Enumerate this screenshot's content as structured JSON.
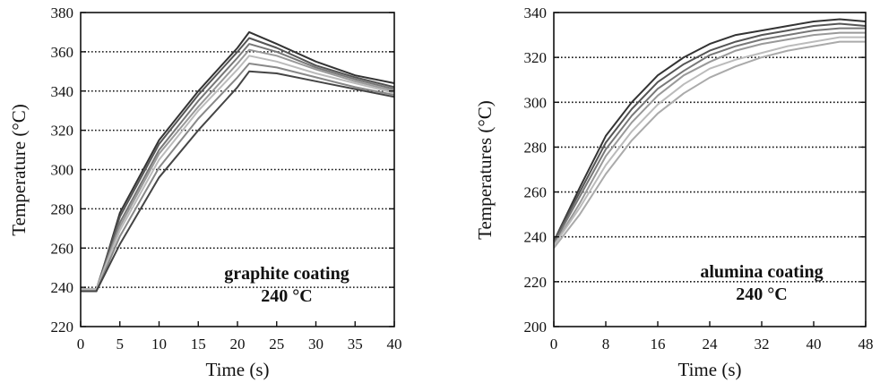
{
  "chart_data": [
    {
      "type": "line",
      "xlabel": "Time (s)",
      "ylabel": "Temperature (°C)",
      "xlim": [
        0,
        40
      ],
      "ylim": [
        220,
        380
      ],
      "xticks": [
        0,
        5,
        10,
        15,
        20,
        25,
        30,
        35,
        40
      ],
      "yticks": [
        220,
        240,
        260,
        280,
        300,
        320,
        340,
        360,
        380
      ],
      "grid": "horizontal dotted",
      "annotation": [
        "graphite coating",
        "240 °C"
      ],
      "series": [
        {
          "color": "#333333",
          "x": [
            0,
            2,
            5,
            10,
            15,
            20,
            21.5,
            25,
            30,
            35,
            40
          ],
          "y": [
            238,
            238,
            278,
            315,
            340,
            362,
            370,
            364,
            355,
            348,
            344
          ]
        },
        {
          "color": "#555555",
          "x": [
            0,
            2,
            5,
            10,
            15,
            20,
            21.5,
            25,
            30,
            35,
            40
          ],
          "y": [
            239,
            239,
            276,
            313,
            338,
            360,
            367,
            362,
            353,
            347,
            342
          ]
        },
        {
          "color": "#777777",
          "x": [
            0,
            2,
            5,
            10,
            15,
            20,
            21.5,
            25,
            30,
            35,
            40
          ],
          "y": [
            238,
            238,
            273,
            310,
            335,
            357,
            364,
            360,
            352,
            346,
            341
          ]
        },
        {
          "color": "#999999",
          "x": [
            0,
            2,
            5,
            10,
            15,
            20,
            21.5,
            25,
            30,
            35,
            40
          ],
          "y": [
            238,
            239,
            271,
            308,
            332,
            354,
            361,
            358,
            351,
            345,
            340
          ]
        },
        {
          "color": "#bbbbbb",
          "x": [
            0,
            2,
            5,
            10,
            15,
            20,
            21.5,
            25,
            30,
            35,
            40
          ],
          "y": [
            239,
            239,
            269,
            305,
            330,
            351,
            358,
            355,
            349,
            344,
            339
          ]
        },
        {
          "color": "#888888",
          "x": [
            0,
            2,
            5,
            10,
            15,
            20,
            21.5,
            25,
            30,
            35,
            40
          ],
          "y": [
            238,
            238,
            266,
            301,
            326,
            347,
            354,
            352,
            347,
            342,
            338
          ]
        },
        {
          "color": "#444444",
          "x": [
            0,
            2,
            5,
            10,
            15,
            20,
            21.5,
            25,
            30,
            35,
            40
          ],
          "y": [
            238,
            238,
            262,
            296,
            320,
            342,
            350,
            349,
            345,
            341,
            337
          ]
        }
      ]
    },
    {
      "type": "line",
      "xlabel": "Time (s)",
      "ylabel": "Temperatures (°C)",
      "xlim": [
        0,
        48
      ],
      "ylim": [
        200,
        340
      ],
      "xticks": [
        0,
        8,
        16,
        24,
        32,
        40,
        48
      ],
      "yticks": [
        200,
        220,
        240,
        260,
        280,
        300,
        320,
        340
      ],
      "grid": "horizontal dotted",
      "annotation": [
        "alumina coating",
        "240 °C"
      ],
      "series": [
        {
          "color": "#333333",
          "x": [
            0,
            4,
            8,
            12,
            16,
            20,
            24,
            28,
            32,
            36,
            40,
            44,
            48
          ],
          "y": [
            238,
            262,
            285,
            300,
            312,
            320,
            326,
            330,
            332,
            334,
            336,
            337,
            336
          ]
        },
        {
          "color": "#555555",
          "x": [
            0,
            4,
            8,
            12,
            16,
            20,
            24,
            28,
            32,
            36,
            40,
            44,
            48
          ],
          "y": [
            238,
            260,
            282,
            297,
            309,
            317,
            323,
            327,
            330,
            332,
            334,
            335,
            334
          ]
        },
        {
          "color": "#777777",
          "x": [
            0,
            4,
            8,
            12,
            16,
            20,
            24,
            28,
            32,
            36,
            40,
            44,
            48
          ],
          "y": [
            237,
            258,
            279,
            294,
            306,
            314,
            321,
            325,
            328,
            330,
            332,
            333,
            333
          ]
        },
        {
          "color": "#999999",
          "x": [
            0,
            4,
            8,
            12,
            16,
            20,
            24,
            28,
            32,
            36,
            40,
            44,
            48
          ],
          "y": [
            236,
            255,
            276,
            291,
            303,
            312,
            318,
            323,
            326,
            328,
            330,
            331,
            331
          ]
        },
        {
          "color": "#bbbbbb",
          "x": [
            0,
            4,
            8,
            12,
            16,
            20,
            24,
            28,
            32,
            36,
            40,
            44,
            48
          ],
          "y": [
            236,
            253,
            272,
            287,
            299,
            308,
            315,
            319,
            322,
            325,
            327,
            329,
            329
          ]
        },
        {
          "color": "#aaaaaa",
          "x": [
            0,
            4,
            8,
            12,
            16,
            20,
            24,
            28,
            32,
            36,
            40,
            44,
            48
          ],
          "y": [
            235,
            250,
            268,
            283,
            295,
            304,
            311,
            316,
            320,
            323,
            325,
            327,
            327
          ]
        }
      ]
    }
  ]
}
